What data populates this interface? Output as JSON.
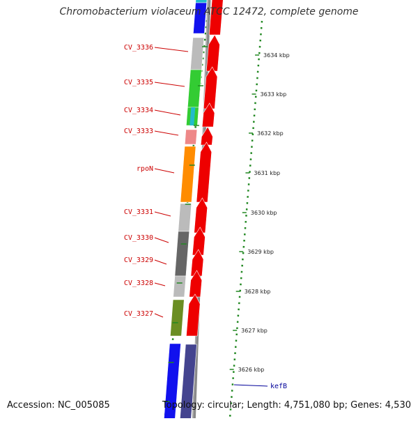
{
  "title": "Chromobacterium violaceum ATCC 12472, complete genome",
  "accession": "Accession: NC_005085",
  "topology": "Topology: circular; Length: 4,751,080 bp; Genes: 4,530",
  "gene_labels": [
    "CV_3336",
    "CV_3335",
    "CV_3334",
    "CV_3333",
    "rpoN",
    "CV_3331",
    "CV_3330",
    "CV_3329",
    "CV_3328",
    "CV_3327"
  ],
  "right_label": "kefB",
  "ticks": [
    "3634 kbp",
    "3633 kbp",
    "3632 kbp",
    "3631 kbp",
    "3630 kbp",
    "3629 kbp",
    "3628 kbp",
    "3627 kbp",
    "3626 kbp"
  ],
  "colors": {
    "gene_label": "#cc0000",
    "kef_label": "#000099",
    "dots": "#228822",
    "cds_forward": "#ee0000",
    "blue": "#1111ee",
    "navy": "#44448f",
    "cyan": "#22bbcc",
    "gray": "#bbbbbb",
    "green": "#33cc33",
    "pink": "#ee8888",
    "orange": "#ff8c00",
    "dark_gray": "#666666",
    "olive": "#6b8e23"
  }
}
